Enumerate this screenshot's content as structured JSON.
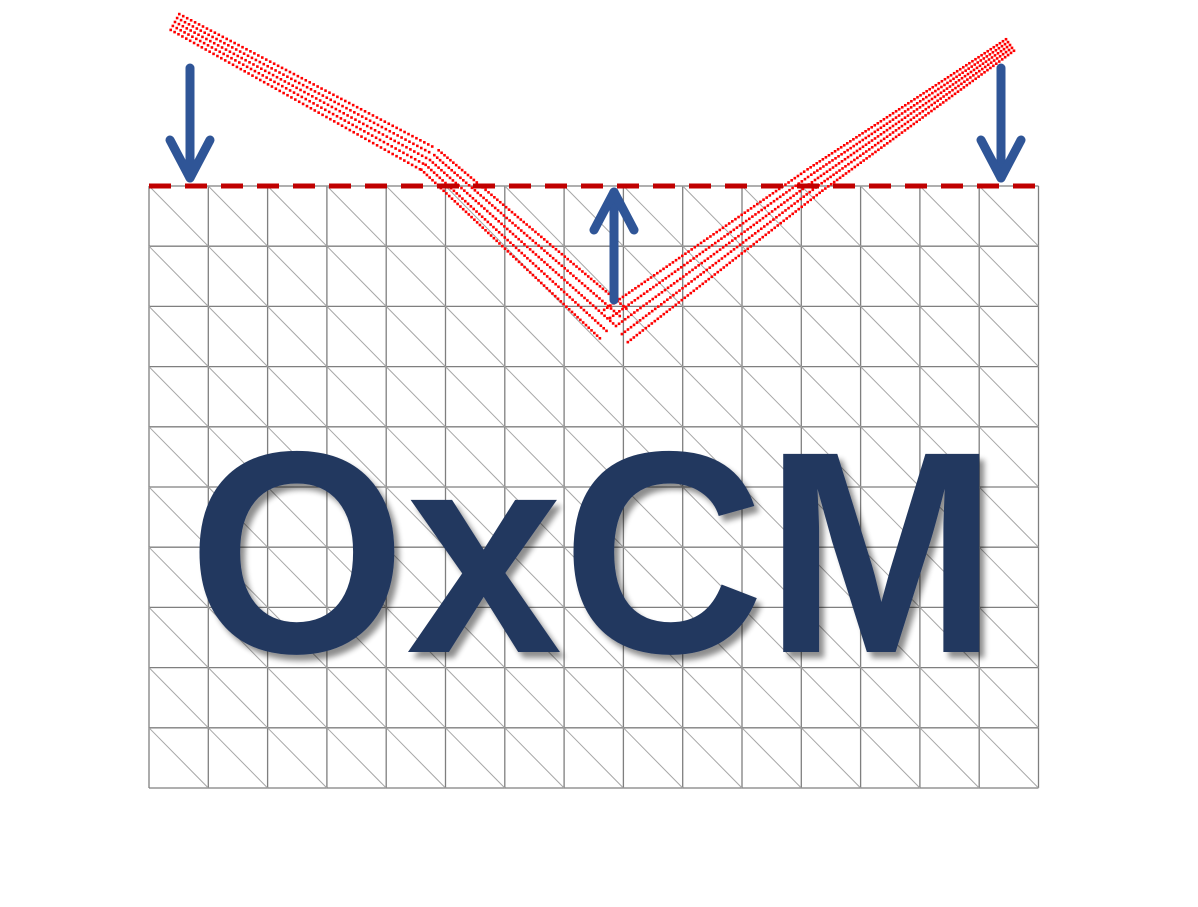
{
  "logo": {
    "text": "OxCM",
    "text_color": "#22375f",
    "arrow_color": "#2f5597",
    "mesh_color": "#ff0000",
    "grid_color": "#7f7f7f",
    "baseline_color": "#c00000",
    "arrows": [
      {
        "name": "arrow-down-left",
        "direction": "down"
      },
      {
        "name": "arrow-up-center",
        "direction": "up"
      },
      {
        "name": "arrow-down-right",
        "direction": "down"
      }
    ]
  }
}
